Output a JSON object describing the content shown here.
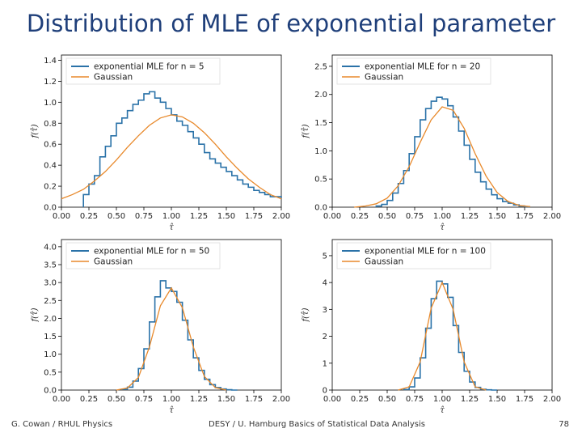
{
  "slide": {
    "title": "Distribution of MLE of exponential parameter",
    "footer_left": "G. Cowan / RHUL Physics",
    "footer_center": "DESY / U. Hamburg Basics of Statistical Data Analysis",
    "page_number": "78"
  },
  "colors": {
    "histogram": "#2a72a8",
    "gaussian": "#e8892b"
  },
  "chart_data": [
    {
      "type": "line",
      "legend": {
        "placement": "top-left",
        "entries": [
          "exponential MLE for n = 5",
          "Gaussian"
        ]
      },
      "xlabel": "τ̂",
      "ylabel": "f(τ̂)",
      "xlim": [
        0,
        2.0
      ],
      "ylim": [
        0,
        1.45
      ],
      "xticks": [
        "0.00",
        "0.25",
        "0.50",
        "0.75",
        "1.00",
        "1.25",
        "1.50",
        "1.75",
        "2.00"
      ],
      "yticks": [
        "0.0",
        "0.2",
        "0.4",
        "0.6",
        "0.8",
        "1.0",
        "1.2",
        "1.4"
      ],
      "series": [
        {
          "name": "exponential MLE for n = 5",
          "style": "step",
          "x": [
            0.2,
            0.25,
            0.3,
            0.35,
            0.4,
            0.45,
            0.5,
            0.55,
            0.6,
            0.65,
            0.7,
            0.75,
            0.8,
            0.85,
            0.9,
            0.95,
            1.0,
            1.05,
            1.1,
            1.15,
            1.2,
            1.25,
            1.3,
            1.35,
            1.4,
            1.45,
            1.5,
            1.55,
            1.6,
            1.65,
            1.7,
            1.75,
            1.8,
            1.85,
            1.9,
            1.95,
            2.0
          ],
          "y": [
            0.12,
            0.22,
            0.3,
            0.48,
            0.58,
            0.68,
            0.8,
            0.85,
            0.92,
            0.98,
            1.02,
            1.08,
            1.1,
            1.04,
            1.0,
            0.94,
            0.88,
            0.82,
            0.78,
            0.72,
            0.66,
            0.6,
            0.52,
            0.46,
            0.42,
            0.38,
            0.34,
            0.3,
            0.26,
            0.22,
            0.19,
            0.16,
            0.14,
            0.12,
            0.1,
            0.1,
            0.09
          ]
        },
        {
          "name": "Gaussian",
          "style": "line",
          "x": [
            0,
            0.1,
            0.2,
            0.3,
            0.4,
            0.5,
            0.6,
            0.7,
            0.8,
            0.9,
            1.0,
            1.1,
            1.2,
            1.3,
            1.4,
            1.5,
            1.6,
            1.7,
            1.8,
            1.9,
            2.0
          ],
          "y": [
            0.08,
            0.12,
            0.17,
            0.25,
            0.34,
            0.45,
            0.57,
            0.68,
            0.78,
            0.85,
            0.88,
            0.86,
            0.8,
            0.71,
            0.6,
            0.48,
            0.37,
            0.27,
            0.19,
            0.12,
            0.08
          ]
        }
      ]
    },
    {
      "type": "line",
      "legend": {
        "placement": "top-left",
        "entries": [
          "exponential MLE for n = 20",
          "Gaussian"
        ]
      },
      "xlabel": "τ̂",
      "ylabel": "f(τ̂)",
      "xlim": [
        0,
        2.0
      ],
      "ylim": [
        0,
        2.7
      ],
      "xticks": [
        "0.00",
        "0.25",
        "0.50",
        "0.75",
        "1.00",
        "1.25",
        "1.50",
        "1.75",
        "2.00"
      ],
      "yticks": [
        "0.0",
        "0.5",
        "1.0",
        "1.5",
        "2.0",
        "2.5"
      ],
      "series": [
        {
          "name": "exponential MLE for n = 20",
          "style": "step",
          "x": [
            0.4,
            0.45,
            0.5,
            0.55,
            0.6,
            0.65,
            0.7,
            0.75,
            0.8,
            0.85,
            0.9,
            0.95,
            1.0,
            1.05,
            1.1,
            1.15,
            1.2,
            1.25,
            1.3,
            1.35,
            1.4,
            1.45,
            1.5,
            1.55,
            1.6,
            1.65,
            1.7,
            1.75
          ],
          "y": [
            0.02,
            0.05,
            0.12,
            0.25,
            0.42,
            0.65,
            0.95,
            1.25,
            1.55,
            1.75,
            1.88,
            1.95,
            1.92,
            1.8,
            1.6,
            1.35,
            1.1,
            0.85,
            0.62,
            0.45,
            0.32,
            0.22,
            0.15,
            0.1,
            0.07,
            0.04,
            0.02,
            0.01
          ]
        },
        {
          "name": "Gaussian",
          "style": "line",
          "x": [
            0.2,
            0.3,
            0.4,
            0.5,
            0.6,
            0.7,
            0.8,
            0.9,
            1.0,
            1.1,
            1.2,
            1.3,
            1.4,
            1.5,
            1.6,
            1.7,
            1.8
          ],
          "y": [
            0.0,
            0.02,
            0.06,
            0.16,
            0.38,
            0.72,
            1.15,
            1.55,
            1.78,
            1.72,
            1.4,
            0.95,
            0.55,
            0.26,
            0.1,
            0.03,
            0.01
          ]
        }
      ]
    },
    {
      "type": "line",
      "legend": {
        "placement": "top-left",
        "entries": [
          "exponential MLE for n = 50",
          "Gaussian"
        ]
      },
      "xlabel": "τ̂",
      "ylabel": "f(τ̂)",
      "xlim": [
        0,
        2.0
      ],
      "ylim": [
        0,
        4.2
      ],
      "xticks": [
        "0.00",
        "0.25",
        "0.50",
        "0.75",
        "1.00",
        "1.25",
        "1.50",
        "1.75",
        "2.00"
      ],
      "yticks": [
        "0.0",
        "0.5",
        "1.0",
        "1.5",
        "2.0",
        "2.5",
        "3.0",
        "3.5",
        "4.0"
      ],
      "series": [
        {
          "name": "exponential MLE for n = 50",
          "style": "step",
          "x": [
            0.55,
            0.6,
            0.65,
            0.7,
            0.75,
            0.8,
            0.85,
            0.9,
            0.95,
            1.0,
            1.05,
            1.1,
            1.15,
            1.2,
            1.25,
            1.3,
            1.35,
            1.4,
            1.45,
            1.5,
            1.55
          ],
          "y": [
            0.02,
            0.08,
            0.25,
            0.6,
            1.15,
            1.9,
            2.6,
            3.05,
            2.85,
            2.75,
            2.45,
            1.95,
            1.4,
            0.9,
            0.55,
            0.3,
            0.15,
            0.07,
            0.03,
            0.01,
            0.0
          ]
        },
        {
          "name": "Gaussian",
          "style": "line",
          "x": [
            0.5,
            0.6,
            0.7,
            0.8,
            0.9,
            1.0,
            1.1,
            1.2,
            1.3,
            1.4,
            1.5
          ],
          "y": [
            0.0,
            0.06,
            0.35,
            1.2,
            2.35,
            2.85,
            2.3,
            1.2,
            0.38,
            0.07,
            0.0
          ]
        }
      ]
    },
    {
      "type": "line",
      "legend": {
        "placement": "top-left",
        "entries": [
          "exponential MLE for n = 100",
          "Gaussian"
        ]
      },
      "xlabel": "τ̂",
      "ylabel": "f(τ̂)",
      "xlim": [
        0,
        2.0
      ],
      "ylim": [
        0,
        5.6
      ],
      "xticks": [
        "0.00",
        "0.25",
        "0.50",
        "0.75",
        "1.00",
        "1.25",
        "1.50",
        "1.75",
        "2.00"
      ],
      "yticks": [
        "0",
        "1",
        "2",
        "3",
        "4",
        "5"
      ],
      "series": [
        {
          "name": "exponential MLE for n = 100",
          "style": "step",
          "x": [
            0.65,
            0.7,
            0.75,
            0.8,
            0.85,
            0.9,
            0.95,
            1.0,
            1.05,
            1.1,
            1.15,
            1.2,
            1.25,
            1.3,
            1.35,
            1.4,
            1.45
          ],
          "y": [
            0.02,
            0.12,
            0.45,
            1.2,
            2.3,
            3.4,
            4.05,
            3.95,
            3.45,
            2.4,
            1.4,
            0.7,
            0.3,
            0.1,
            0.03,
            0.01,
            0.0
          ]
        },
        {
          "name": "Gaussian",
          "style": "line",
          "x": [
            0.6,
            0.7,
            0.8,
            0.9,
            1.0,
            1.1,
            1.2,
            1.3,
            1.4
          ],
          "y": [
            0.0,
            0.12,
            1.05,
            3.05,
            4.0,
            3.0,
            1.05,
            0.12,
            0.0
          ]
        }
      ]
    }
  ]
}
